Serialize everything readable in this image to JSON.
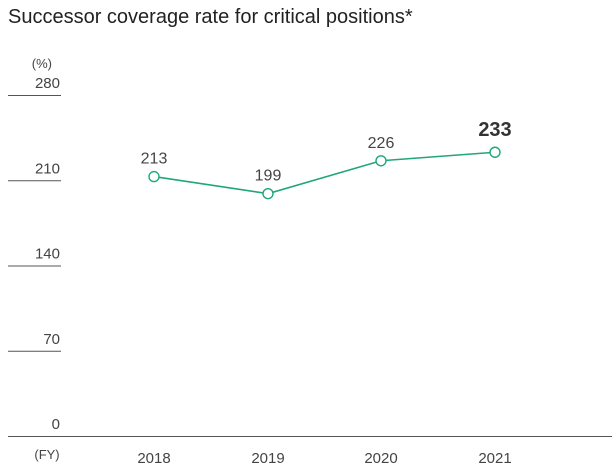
{
  "chart_data": {
    "type": "line",
    "title": "Successor coverage rate for critical positions*",
    "y_unit_label": "(%)",
    "x_unit_label": "(FY)",
    "categories": [
      "2018",
      "2019",
      "2020",
      "2021"
    ],
    "values": [
      213,
      199,
      226,
      233
    ],
    "data_labels": [
      "213",
      "199",
      "226",
      "233"
    ],
    "y_ticks": [
      0,
      70,
      140,
      210,
      280
    ],
    "y_tick_labels": [
      "0",
      "70",
      "140",
      "210",
      "280"
    ],
    "ylim": [
      0,
      280
    ],
    "highlight_index": 3,
    "line_color": "#1fa77a",
    "marker_fill": "#ffffff",
    "axis_color": "#555555",
    "grid": false
  }
}
